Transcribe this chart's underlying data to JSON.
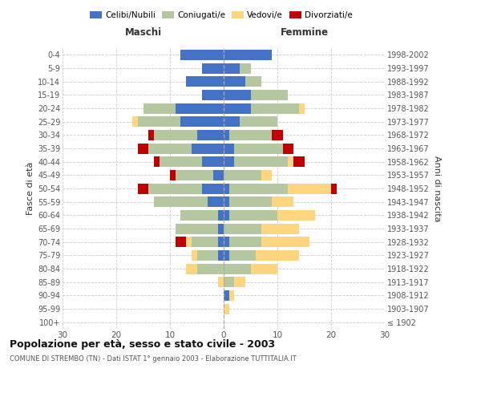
{
  "age_groups": [
    "100+",
    "95-99",
    "90-94",
    "85-89",
    "80-84",
    "75-79",
    "70-74",
    "65-69",
    "60-64",
    "55-59",
    "50-54",
    "45-49",
    "40-44",
    "35-39",
    "30-34",
    "25-29",
    "20-24",
    "15-19",
    "10-14",
    "5-9",
    "0-4"
  ],
  "birth_years": [
    "≤ 1902",
    "1903-1907",
    "1908-1912",
    "1913-1917",
    "1918-1922",
    "1923-1927",
    "1928-1932",
    "1933-1937",
    "1938-1942",
    "1943-1947",
    "1948-1952",
    "1953-1957",
    "1958-1962",
    "1963-1967",
    "1968-1972",
    "1973-1977",
    "1978-1982",
    "1983-1987",
    "1988-1992",
    "1993-1997",
    "1998-2002"
  ],
  "maschi": {
    "celibi": [
      0,
      0,
      0,
      0,
      0,
      1,
      1,
      1,
      1,
      3,
      4,
      2,
      4,
      6,
      5,
      8,
      9,
      4,
      7,
      4,
      8
    ],
    "coniugati": [
      0,
      0,
      0,
      0,
      5,
      4,
      5,
      8,
      7,
      10,
      10,
      7,
      8,
      8,
      8,
      8,
      6,
      0,
      0,
      0,
      0
    ],
    "vedovi": [
      0,
      0,
      0,
      1,
      2,
      1,
      1,
      0,
      0,
      0,
      0,
      0,
      0,
      0,
      0,
      1,
      0,
      0,
      0,
      0,
      0
    ],
    "divorziati": [
      0,
      0,
      0,
      0,
      0,
      0,
      2,
      0,
      0,
      0,
      2,
      1,
      1,
      2,
      1,
      0,
      0,
      0,
      0,
      0,
      0
    ]
  },
  "femmine": {
    "nubili": [
      0,
      0,
      1,
      0,
      0,
      1,
      1,
      0,
      1,
      1,
      1,
      0,
      2,
      2,
      1,
      3,
      5,
      5,
      4,
      3,
      9
    ],
    "coniugate": [
      0,
      0,
      0,
      2,
      5,
      5,
      6,
      7,
      9,
      8,
      11,
      7,
      10,
      9,
      8,
      7,
      9,
      7,
      3,
      2,
      0
    ],
    "vedove": [
      0,
      1,
      1,
      2,
      5,
      8,
      9,
      7,
      7,
      4,
      8,
      2,
      1,
      0,
      0,
      0,
      1,
      0,
      0,
      0,
      0
    ],
    "divorziate": [
      0,
      0,
      0,
      0,
      0,
      0,
      0,
      0,
      0,
      0,
      1,
      0,
      2,
      2,
      2,
      0,
      0,
      0,
      0,
      0,
      0
    ]
  },
  "colors": {
    "celibi": "#4472c4",
    "coniugati": "#b4c7a0",
    "vedovi": "#ffd580",
    "divorziati": "#c00000"
  },
  "xlim": 30,
  "title": "Popolazione per età, sesso e stato civile - 2003",
  "subtitle": "COMUNE DI STREMBO (TN) - Dati ISTAT 1° gennaio 2003 - Elaborazione TUTTITALIA.IT",
  "ylabel_left": "Fasce di età",
  "ylabel_right": "Anni di nascita",
  "xlabel_maschi": "Maschi",
  "xlabel_femmine": "Femmine"
}
